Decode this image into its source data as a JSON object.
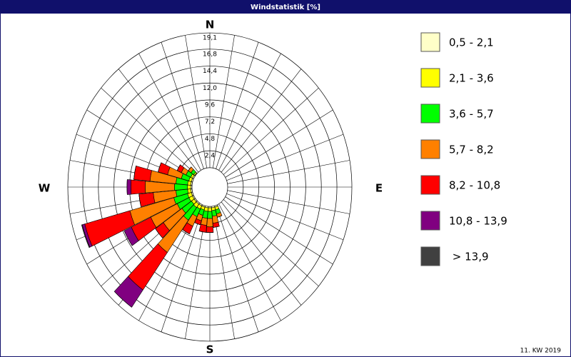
{
  "chart_data": {
    "type": "windrose",
    "title": "Windstatistik [%]",
    "x": [
      160,
      170,
      180,
      190,
      200,
      210,
      220,
      230,
      240,
      250,
      260,
      270,
      280,
      290,
      300,
      310
    ],
    "series": [
      {
        "name": "0,5 - 2,1",
        "color": "#ffffc8",
        "values": [
          0.2,
          0.2,
          0.2,
          0.2,
          0.2,
          0.2,
          0.2,
          0.2,
          0.2,
          0.2,
          0.2,
          0.2,
          0.2,
          0.2,
          0.2,
          0.1
        ]
      },
      {
        "name": "2,1 - 3,6",
        "color": "#ffff00",
        "values": [
          0.4,
          0.4,
          0.5,
          0.5,
          0.4,
          0.5,
          0.6,
          0.5,
          0.6,
          0.6,
          0.5,
          0.5,
          0.5,
          0.4,
          0.3,
          0.2
        ]
      },
      {
        "name": "3,6 - 5,7",
        "color": "#00ff00",
        "values": [
          0.6,
          0.8,
          1.0,
          1.0,
          0.8,
          1.2,
          2.2,
          1.8,
          2.0,
          2.2,
          1.8,
          2.0,
          1.8,
          1.2,
          0.8,
          0.5
        ]
      },
      {
        "name": "5,7 - 8,2",
        "color": "#ff8000",
        "values": [
          0.5,
          1.0,
          1.2,
          1.0,
          0.8,
          1.5,
          5.6,
          3.5,
          4.5,
          7.0,
          3.5,
          4.5,
          4.0,
          2.2,
          0.8,
          0.5
        ]
      },
      {
        "name": "8,2 - 10,8",
        "color": "#ff0000",
        "values": [
          0,
          0.6,
          0.8,
          1.0,
          0.6,
          1.2,
          6.5,
          1.5,
          3.3,
          7.2,
          2.2,
          2.2,
          2.5,
          1.5,
          0.7,
          0
        ]
      },
      {
        "name": "10,8 - 13,9",
        "color": "#800080",
        "values": [
          0,
          0,
          0,
          0,
          0,
          0,
          3.0,
          0,
          1.2,
          0.4,
          0,
          0.6,
          0,
          0,
          0,
          0
        ]
      },
      {
        "name": " > 13,9",
        "color": "#404040",
        "values": [
          0,
          0,
          0,
          0,
          0,
          0,
          0,
          0,
          0,
          0.1,
          0,
          0,
          0,
          0,
          0,
          0
        ]
      }
    ],
    "ylim": [
      0,
      19.1
    ],
    "yticks": [
      {
        "value": 2.4,
        "label": "2,4"
      },
      {
        "value": 4.8,
        "label": "4,8"
      },
      {
        "value": 7.2,
        "label": "7,2"
      },
      {
        "value": 9.6,
        "label": "9,6"
      },
      {
        "value": 12.0,
        "label": "12,0"
      },
      {
        "value": 14.4,
        "label": "14,4"
      },
      {
        "value": 16.8,
        "label": "16,8"
      },
      {
        "value": 19.1,
        "label": "19,1"
      }
    ],
    "compass_labels": [
      "N",
      "E",
      "S",
      "W"
    ],
    "footnote": "11. KW 2019"
  }
}
